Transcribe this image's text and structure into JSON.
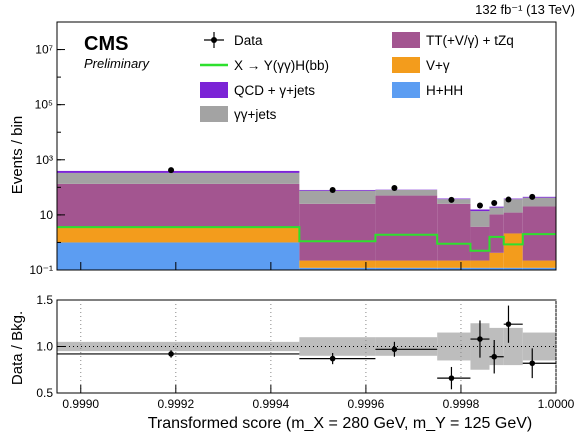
{
  "chart_data": {
    "type": "bar",
    "header_right": "132 fb⁻¹ (13 TeV)",
    "experiment": "CMS",
    "status": "Preliminary",
    "xlabel": "Transformed score (m_X = 280 GeV, m_Y = 125 GeV)",
    "x_ticks": [
      "0.9990",
      "0.9992",
      "0.9994",
      "0.9996",
      "0.9998",
      "1.0000"
    ],
    "xlim": [
      0.99895,
      1.0
    ],
    "bin_edges": [
      0.99895,
      0.99946,
      0.99962,
      0.99975,
      0.99982,
      0.99986,
      0.99989,
      0.99993,
      1.0
    ],
    "top": {
      "ylabel": "Events / bin",
      "yscale": "log",
      "ylim": [
        0.1,
        100000000
      ],
      "y_ticks": [
        "10⁻¹",
        "10",
        "10³",
        "10⁵",
        "10⁷"
      ],
      "stack_series": [
        {
          "name": "H+HH",
          "color": "#5c9df2",
          "values": [
            1.0,
            0.12,
            0.12,
            0.12,
            0.12,
            0.12,
            0.12,
            0.12
          ]
        },
        {
          "name": "V+γ",
          "color": "#f39c1c",
          "values": [
            2.6,
            0.1,
            0.1,
            0.1,
            0.1,
            0.3,
            2.0,
            0.1
          ]
        },
        {
          "name": "TT(+V/γ) + tZq",
          "color": "#a35590",
          "values": [
            130,
            25,
            50,
            25,
            3.5,
            10,
            10,
            20
          ]
        },
        {
          "name": "γγ+jets",
          "color": "#a3a3a3",
          "values": [
            200,
            50,
            30,
            12,
            10,
            8,
            25,
            22
          ]
        },
        {
          "name": "QCD + γ+jets",
          "color": "#7b24d6",
          "values": [
            60,
            5,
            2,
            2,
            2,
            1.5,
            2,
            3
          ]
        }
      ],
      "signal": {
        "name": "X → Y(γγ)H(bb)",
        "color": "#2ee02e",
        "values": [
          3.6,
          1.1,
          1.9,
          0.9,
          0.5,
          1.6,
          0.85,
          2.0
        ]
      },
      "data": {
        "name": "Data",
        "x": [
          0.99919,
          0.99953,
          0.99966,
          0.99978,
          0.99984,
          0.99987,
          0.9999,
          0.99995
        ],
        "y": [
          420,
          80,
          95,
          35,
          22,
          27,
          36,
          45
        ],
        "err": [
          20,
          9,
          10,
          6,
          5,
          5,
          6,
          7
        ]
      }
    },
    "bottom": {
      "ylabel": "Data / Bkg.",
      "ylim": [
        0.5,
        1.5
      ],
      "y_ticks": [
        "0.5",
        "1.0",
        "1.5"
      ],
      "ratio_x": [
        0.99919,
        0.99953,
        0.99966,
        0.99978,
        0.99984,
        0.99987,
        0.9999,
        0.99995
      ],
      "ratio_y": [
        0.92,
        0.87,
        0.97,
        0.66,
        1.08,
        0.89,
        1.24,
        0.82
      ],
      "ratio_err": [
        0.04,
        0.06,
        0.08,
        0.12,
        0.2,
        0.18,
        0.2,
        0.16
      ],
      "unc_band": [
        0.05,
        0.1,
        0.1,
        0.15,
        0.25,
        0.2,
        0.2,
        0.15
      ]
    },
    "legend": [
      "Data",
      "X → Y(γγ)H(bb)",
      "QCD + γ+jets",
      "γγ+jets",
      "TT(+V/γ) + tZq",
      "V+γ",
      "H+HH"
    ]
  }
}
